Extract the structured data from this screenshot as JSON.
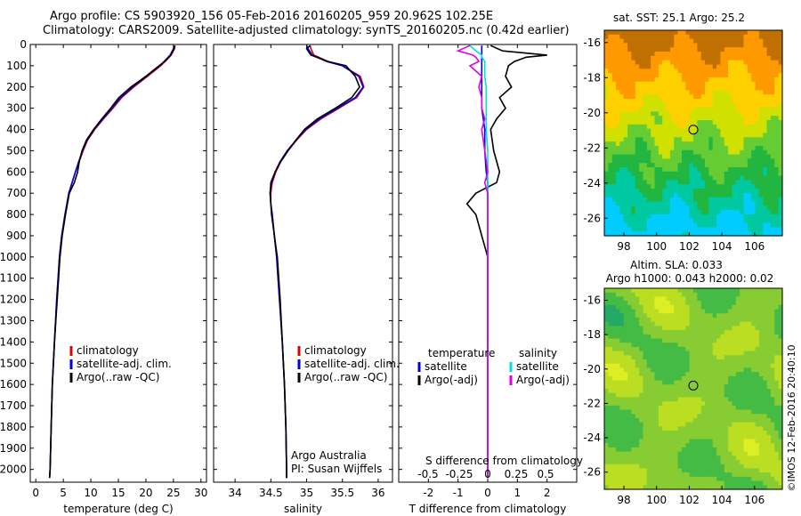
{
  "title": {
    "line1": "Argo profile: CS 5903920_156 05-Feb-2016 20160205_959 20.962S 102.25E",
    "line2": "Climatology: CARS2009. Satellite-adjusted climatology: synTS_20160205.nc (0.42d earlier)"
  },
  "colors": {
    "climatology": "#e00000",
    "satellite": "#0000dd",
    "argo": "#000000",
    "sat_salinity": "#00e0e0",
    "argo_salinity_adj": "#e000e0"
  },
  "chart_data": [
    {
      "type": "line",
      "panel": "temperature",
      "xlabel": "temperature (deg C)",
      "ylabel": "",
      "xlim": [
        -1,
        31
      ],
      "ylim": [
        2060,
        0
      ],
      "xticks": [
        0,
        5,
        10,
        15,
        20,
        25,
        30
      ],
      "yticks": [
        0,
        100,
        200,
        300,
        400,
        500,
        600,
        700,
        800,
        900,
        1000,
        1100,
        1200,
        1300,
        1400,
        1500,
        1600,
        1700,
        1800,
        1900,
        2000
      ],
      "legend": [
        "climatology",
        "satellite-adj. clim.",
        "Argo(..raw -QC)"
      ],
      "legend_position": "lower-left",
      "depth": [
        5,
        20,
        50,
        80,
        100,
        150,
        200,
        250,
        300,
        350,
        400,
        450,
        500,
        550,
        600,
        650,
        700,
        800,
        900,
        1000,
        1200,
        1400,
        1600,
        1800,
        2000,
        2040
      ],
      "series": [
        {
          "name": "climatology",
          "values": [
            25.3,
            25.2,
            24.6,
            23.5,
            22.7,
            20.3,
            17.8,
            15.6,
            14.0,
            12.3,
            10.7,
            9.4,
            8.6,
            7.9,
            7.2,
            6.6,
            6.0,
            5.3,
            4.7,
            4.3,
            3.8,
            3.4,
            3.0,
            2.8,
            2.6,
            2.5
          ]
        },
        {
          "name": "satellite-adj. clim.",
          "values": [
            25.1,
            25.0,
            24.4,
            23.3,
            22.5,
            20.1,
            17.6,
            15.4,
            13.8,
            12.2,
            10.6,
            9.3,
            8.5,
            7.8,
            7.2,
            6.6,
            6.0,
            5.3,
            4.7,
            4.3,
            3.8,
            3.4,
            3.0,
            2.8,
            2.6,
            2.5
          ]
        },
        {
          "name": "Argo(..raw -QC)",
          "values": [
            25.2,
            25.1,
            24.5,
            23.4,
            22.4,
            20.0,
            17.3,
            15.1,
            13.6,
            12.0,
            10.5,
            9.2,
            8.4,
            7.9,
            7.6,
            7.0,
            6.1,
            5.4,
            4.8,
            4.4,
            3.9,
            3.4,
            3.0,
            2.8,
            2.6,
            2.5
          ]
        }
      ]
    },
    {
      "type": "line",
      "panel": "salinity",
      "xlabel": "salinity",
      "xlim": [
        33.7,
        36.2
      ],
      "ylim": [
        2060,
        0
      ],
      "xticks": [
        34,
        34.5,
        35,
        35.5,
        36
      ],
      "legend": [
        "climatology",
        "satellite-adj. clim.",
        "Argo(..raw -QC)"
      ],
      "legend_position": "lower-left",
      "annotation": [
        "Argo Australia",
        "PI: Susan Wijffels"
      ],
      "depth": [
        5,
        20,
        50,
        80,
        100,
        150,
        200,
        250,
        300,
        350,
        400,
        450,
        500,
        550,
        600,
        650,
        700,
        750,
        800,
        900,
        1000,
        1200,
        1400,
        1600,
        1800,
        2000,
        2040
      ],
      "series": [
        {
          "name": "climatology",
          "values": [
            35.05,
            35.06,
            35.1,
            35.3,
            35.5,
            35.75,
            35.8,
            35.7,
            35.45,
            35.2,
            35.0,
            34.86,
            34.74,
            34.64,
            34.57,
            34.52,
            34.5,
            34.5,
            34.52,
            34.55,
            34.58,
            34.62,
            34.66,
            34.69,
            34.71,
            34.72,
            34.72
          ]
        },
        {
          "name": "satellite-adj. clim.",
          "values": [
            35.0,
            35.02,
            35.08,
            35.28,
            35.5,
            35.73,
            35.79,
            35.68,
            35.43,
            35.18,
            34.99,
            34.85,
            34.73,
            34.63,
            34.56,
            34.51,
            34.49,
            34.5,
            34.52,
            34.55,
            34.58,
            34.62,
            34.66,
            34.69,
            34.71,
            34.72,
            34.72
          ]
        },
        {
          "name": "Argo(..raw -QC)",
          "values": [
            35.05,
            35.0,
            35.06,
            35.3,
            35.55,
            35.68,
            35.74,
            35.63,
            35.4,
            35.15,
            34.97,
            34.85,
            34.74,
            34.64,
            34.56,
            34.5,
            34.49,
            34.5,
            34.51,
            34.55,
            34.59,
            34.63,
            34.66,
            34.69,
            34.71,
            34.72,
            34.72
          ]
        }
      ]
    },
    {
      "type": "line",
      "panel": "difference",
      "xlabel": "T difference from climatology",
      "xlabel_top": "S difference from climatology",
      "xlim": [
        -3,
        3
      ],
      "ylim": [
        2060,
        0
      ],
      "xticks": [
        -2,
        -1,
        0,
        1,
        2
      ],
      "xticks_top": [
        "-0.5",
        "-0.25",
        "0",
        "0.25",
        "0.5"
      ],
      "legend_headers": [
        "temperature",
        "salinity"
      ],
      "legend": [
        "satellite",
        "Argo(-adj)",
        "satellite",
        "Argo(-adj)"
      ],
      "depth": [
        5,
        30,
        50,
        60,
        80,
        100,
        150,
        200,
        250,
        300,
        350,
        400,
        500,
        600,
        650,
        700,
        750,
        800,
        900,
        1000,
        1200,
        1400,
        1600,
        1800,
        2000,
        2040
      ],
      "series": [
        {
          "name": "temperature satellite",
          "values": [
            -0.2,
            -0.2,
            -0.2,
            -0.2,
            -0.2,
            -0.2,
            -0.2,
            -0.2,
            -0.2,
            -0.2,
            -0.15,
            -0.1,
            -0.1,
            -0.05,
            0,
            0,
            0,
            0,
            0,
            0,
            0,
            0,
            0,
            0,
            0,
            0
          ]
        },
        {
          "name": "temperature Argo(-adj)",
          "values": [
            0.1,
            0.5,
            2.0,
            1.3,
            0.9,
            0.7,
            0.6,
            0.8,
            0.4,
            0.6,
            0.3,
            0.1,
            0.2,
            0.4,
            0.3,
            -0.4,
            -0.7,
            -0.4,
            -0.2,
            0,
            0,
            0,
            0,
            0,
            0,
            0
          ]
        },
        {
          "name": "salinity satellite",
          "values": [
            -0.6,
            -0.4,
            -0.2,
            -0.2,
            -0.1,
            -0.1,
            -0.1,
            -0.05,
            -0.05,
            -0.05,
            -0.05,
            -0.05,
            0,
            0,
            0,
            0,
            0,
            0,
            0,
            0,
            0,
            0,
            0,
            0,
            0,
            0
          ]
        },
        {
          "name": "salinity Argo(-adj)",
          "values": [
            -0.6,
            -1.0,
            -0.5,
            -0.4,
            -0.3,
            -0.6,
            -0.2,
            -0.3,
            -0.2,
            -0.2,
            -0.1,
            -0.2,
            -0.1,
            0,
            -0.1,
            0,
            0,
            0,
            0,
            0,
            0,
            0,
            0,
            0,
            0,
            0
          ]
        }
      ]
    },
    {
      "type": "heatmap",
      "panel": "sst-map",
      "title": "sat. SST: 25.1  Argo: 25.2",
      "xlim": [
        96.8,
        107.7
      ],
      "ylim": [
        -27,
        -15.3
      ],
      "xticks": [
        98,
        100,
        102,
        104,
        106
      ],
      "yticks": [
        -16,
        -18,
        -20,
        -22,
        -24,
        -26
      ],
      "marker": {
        "lon": 102.25,
        "lat": -20.96
      },
      "colormap": [
        "#c07000",
        "#ff9900",
        "#ffd000",
        "#d0e000",
        "#66cc33",
        "#22b640",
        "#00c8a0",
        "#00ccff"
      ]
    },
    {
      "type": "heatmap",
      "panel": "sla-map",
      "title_lines": [
        "Altim. SLA: 0.033",
        "Argo h1000: 0.043  h2000: 0.02"
      ],
      "xlim": [
        96.8,
        107.7
      ],
      "ylim": [
        -27,
        -15.3
      ],
      "xticks": [
        98,
        100,
        102,
        104,
        106
      ],
      "yticks": [
        -16,
        -18,
        -20,
        -22,
        -24,
        -26
      ],
      "marker": {
        "lon": 102.25,
        "lat": -20.96
      },
      "colormap": [
        "#22aa66",
        "#44bb44",
        "#88cc33",
        "#bbdd22",
        "#ddee22"
      ]
    }
  ],
  "credit": "©IMOS 12-Feb-2016 20:40:10"
}
